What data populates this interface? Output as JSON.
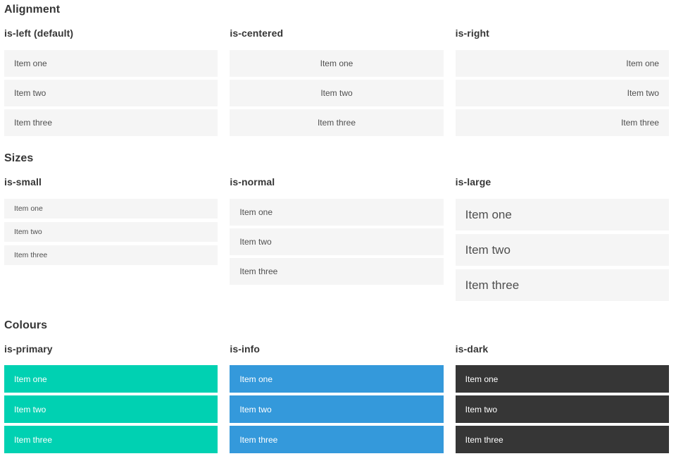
{
  "colors": {
    "page_bg": "#ffffff",
    "item_bg": "#f5f5f5",
    "item_text": "#4f4f4f",
    "heading_text": "#363636",
    "primary": "#00d1b2",
    "info": "#3499db",
    "dark": "#363636",
    "colored_item_text": "#ffffff"
  },
  "sections": [
    {
      "title": "Alignment",
      "columns": [
        {
          "label": "is-left (default)",
          "items": [
            "Item one",
            "Item two",
            "Item three"
          ]
        },
        {
          "label": "is-centered",
          "items": [
            "Item one",
            "Item two",
            "Item three"
          ]
        },
        {
          "label": "is-right",
          "items": [
            "Item one",
            "Item two",
            "Item three"
          ]
        }
      ]
    },
    {
      "title": "Sizes",
      "columns": [
        {
          "label": "is-small",
          "items": [
            "Item one",
            "Item two",
            "Item three"
          ]
        },
        {
          "label": "is-normal",
          "items": [
            "Item one",
            "Item two",
            "Item three"
          ]
        },
        {
          "label": "is-large",
          "items": [
            "Item one",
            "Item two",
            "Item three"
          ]
        }
      ]
    },
    {
      "title": "Colours",
      "columns": [
        {
          "label": "is-primary",
          "items": [
            "Item one",
            "Item two",
            "Item three"
          ]
        },
        {
          "label": "is-info",
          "items": [
            "Item one",
            "Item two",
            "Item three"
          ]
        },
        {
          "label": "is-dark",
          "items": [
            "Item one",
            "Item two",
            "Item three"
          ]
        }
      ]
    }
  ]
}
